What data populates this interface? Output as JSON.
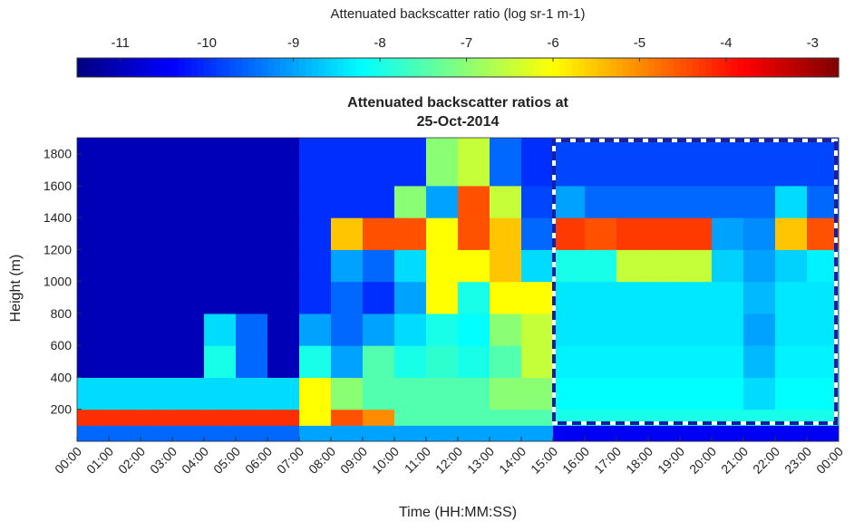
{
  "chart_data": {
    "type": "heatmap",
    "title": "Attenuated backscatter ratios at",
    "subtitle": "25-Oct-2014",
    "xlabel": "Time (HH:MM:SS)",
    "ylabel": "Height (m)",
    "colorbar_label": "Attenuated backscatter ratio (log sr-1 m-1)",
    "colormap": "jet",
    "clim": [
      -11.5,
      -2.7
    ],
    "cticks": [
      -11,
      -10,
      -9,
      -8,
      -7,
      -6,
      -5,
      -4,
      -3
    ],
    "xlim": [
      0,
      24
    ],
    "xticks": [
      {
        "value": 0,
        "label": "00:00"
      },
      {
        "value": 1,
        "label": "01:00"
      },
      {
        "value": 2,
        "label": "02:00"
      },
      {
        "value": 3,
        "label": "03:00"
      },
      {
        "value": 4,
        "label": "04:00"
      },
      {
        "value": 5,
        "label": "05:00"
      },
      {
        "value": 6,
        "label": "06:00"
      },
      {
        "value": 7,
        "label": "07:00"
      },
      {
        "value": 8,
        "label": "08:00"
      },
      {
        "value": 9,
        "label": "09:00"
      },
      {
        "value": 10,
        "label": "10:00"
      },
      {
        "value": 11,
        "label": "11:00"
      },
      {
        "value": 12,
        "label": "12:00"
      },
      {
        "value": 13,
        "label": "13:00"
      },
      {
        "value": 14,
        "label": "14:00"
      },
      {
        "value": 15,
        "label": "15:00"
      },
      {
        "value": 16,
        "label": "16:00"
      },
      {
        "value": 17,
        "label": "17:00"
      },
      {
        "value": 18,
        "label": "18:00"
      },
      {
        "value": 19,
        "label": "19:00"
      },
      {
        "value": 20,
        "label": "20:00"
      },
      {
        "value": 21,
        "label": "21:00"
      },
      {
        "value": 22,
        "label": "22:00"
      },
      {
        "value": 23,
        "label": "23:00"
      },
      {
        "value": 24,
        "label": "00:00"
      }
    ],
    "ylim": [
      0,
      1900
    ],
    "yticks": [
      200,
      400,
      600,
      800,
      1000,
      1200,
      1400,
      1600,
      1800
    ],
    "y_bins": [
      0,
      100,
      200,
      400,
      600,
      800,
      1000,
      1200,
      1400,
      1600,
      1900
    ],
    "z": [
      [
        -9.5,
        -9.5,
        -9.5,
        -9.5,
        -9.5,
        -9.5,
        -9.5,
        -9,
        -9,
        -9,
        -9,
        -9,
        -9,
        -9,
        -9,
        -10.5,
        -10.5,
        -10.5,
        -10.5,
        -10.5,
        -10.5,
        -10.5,
        -10.5,
        -10.5
      ],
      [
        -4.2,
        -4.2,
        -4.2,
        -4.2,
        -4.2,
        -4.2,
        -4.2,
        -6,
        -4.5,
        -5,
        -7.5,
        -7.5,
        -7.5,
        -7.5,
        -7.5,
        -8,
        -8,
        -8,
        -8,
        -8,
        -8,
        -8,
        -8,
        -8
      ],
      [
        -8.5,
        -8.5,
        -8.5,
        -8.5,
        -8.5,
        -8.5,
        -8.5,
        -6,
        -7,
        -7.5,
        -7.5,
        -7.5,
        -7.5,
        -7,
        -7,
        -8.2,
        -8.2,
        -8.2,
        -8.2,
        -8.2,
        -8.2,
        -8.5,
        -8.2,
        -8.2
      ],
      [
        -11,
        -11,
        -11,
        -11,
        -8,
        -9.5,
        -11,
        -8,
        -9,
        -7.5,
        -8,
        -7.8,
        -8,
        -7.5,
        -6.5,
        -8.3,
        -8.3,
        -8.3,
        -8.3,
        -8.3,
        -8.3,
        -8.8,
        -8.3,
        -8.3
      ],
      [
        -11,
        -11,
        -11,
        -11,
        -8.5,
        -9.5,
        -11,
        -9,
        -9.5,
        -9,
        -8.5,
        -8,
        -8.2,
        -7,
        -6.5,
        -8.4,
        -8.4,
        -8.4,
        -8.4,
        -8.4,
        -8.4,
        -9,
        -8.4,
        -8.4
      ],
      [
        -11,
        -11,
        -11,
        -11,
        -11,
        -11,
        -11,
        -10,
        -9.5,
        -10,
        -9,
        -6,
        -8,
        -6,
        -6,
        -8.4,
        -8.4,
        -8.4,
        -8.4,
        -8.4,
        -8.4,
        -8.8,
        -8.4,
        -8.4
      ],
      [
        -11,
        -11,
        -11,
        -11,
        -11,
        -11,
        -11,
        -10,
        -9,
        -9.5,
        -8.5,
        -6,
        -6,
        -5.5,
        -8.5,
        -8,
        -8,
        -6.5,
        -6.5,
        -6.5,
        -8.6,
        -9,
        -8.6,
        -8.3
      ],
      [
        -11,
        -11,
        -11,
        -11,
        -11,
        -11,
        -11,
        -10,
        -5.5,
        -4.5,
        -4.5,
        -6,
        -4.5,
        -5.5,
        -9.5,
        -4.3,
        -4.5,
        -4.3,
        -4.3,
        -4.3,
        -9,
        -9.2,
        -5.5,
        -4.5
      ],
      [
        -11,
        -11,
        -11,
        -11,
        -11,
        -11,
        -11,
        -10,
        -10,
        -10,
        -7,
        -9,
        -4.5,
        -6.5,
        -9.8,
        -9,
        -9.5,
        -9.5,
        -9.5,
        -9.5,
        -9.5,
        -9.5,
        -8.5,
        -9.5
      ],
      [
        -11,
        -11,
        -11,
        -11,
        -11,
        -11,
        -11,
        -10,
        -10,
        -10,
        -10,
        -7,
        -6.5,
        -9.5,
        -10,
        -9.8,
        -9.8,
        -9.8,
        -9.8,
        -9.8,
        -9.8,
        -9.8,
        -9.8,
        -9.8
      ]
    ]
  }
}
